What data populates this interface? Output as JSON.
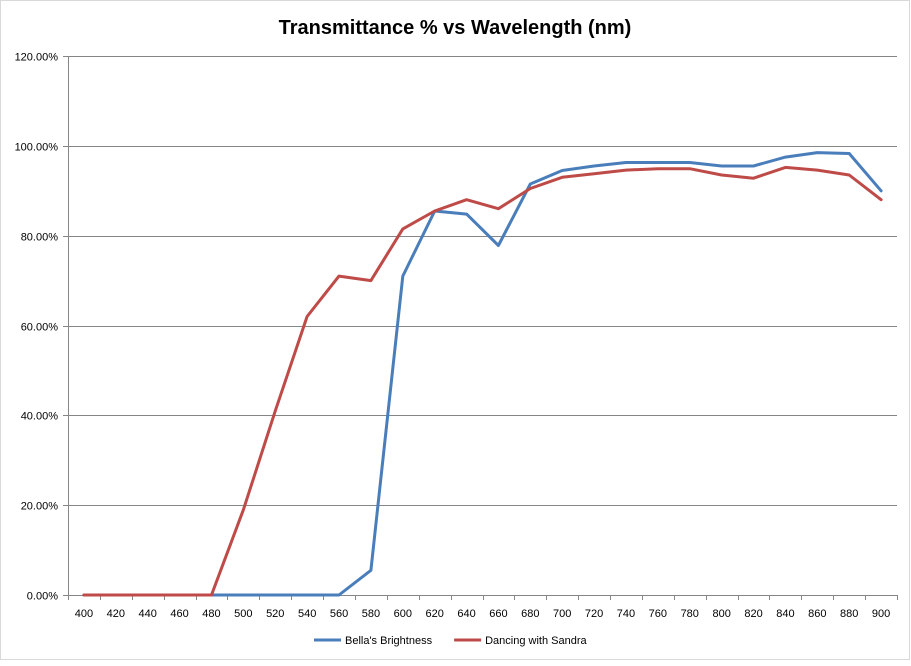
{
  "chart_data": {
    "type": "line",
    "title": "Transmittance % vs Wavelength (nm)",
    "xlabel": "",
    "ylabel": "",
    "ylim": [
      0,
      120
    ],
    "y_ticks": [
      "0.00%",
      "20.00%",
      "40.00%",
      "60.00%",
      "80.00%",
      "100.00%",
      "120.00%"
    ],
    "x": [
      400,
      420,
      440,
      460,
      480,
      500,
      520,
      540,
      560,
      580,
      600,
      620,
      640,
      660,
      680,
      700,
      720,
      740,
      760,
      780,
      800,
      820,
      840,
      860,
      880,
      900
    ],
    "grid": true,
    "legend_position": "bottom",
    "series": [
      {
        "name": "Bella's Brightness",
        "color": "#4a7ebb",
        "values": [
          0,
          0,
          0,
          0,
          0,
          0,
          0,
          0,
          0,
          5.5,
          71,
          85.5,
          84.8,
          77.8,
          91.5,
          94.5,
          95.5,
          96.3,
          96.3,
          96.3,
          95.5,
          95.5,
          97.5,
          98.5,
          98.3,
          90
        ]
      },
      {
        "name": "Dancing with Sandra",
        "color": "#be4b48",
        "values": [
          0,
          0,
          0,
          0,
          0,
          19,
          41,
          62,
          71,
          70,
          81.5,
          85.5,
          88,
          86,
          90.5,
          93,
          93.8,
          94.6,
          94.9,
          94.9,
          93.5,
          92.8,
          95.2,
          94.6,
          93.5,
          88
        ]
      }
    ]
  }
}
